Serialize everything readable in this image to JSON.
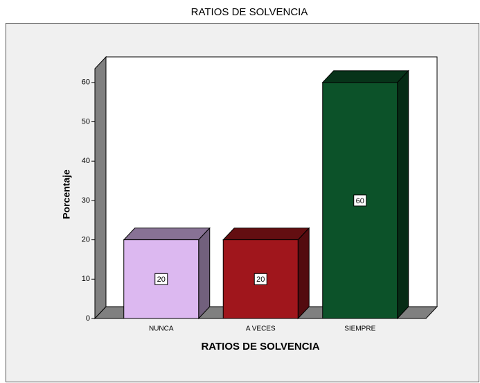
{
  "chart_data": {
    "type": "bar3d",
    "title": "RATIOS DE SOLVENCIA",
    "x_label": "RATIOS DE SOLVENCIA",
    "y_label": "Porcentaje",
    "categories": [
      "NUNCA",
      "A VECES",
      "SIEMPRE"
    ],
    "values": [
      20,
      20,
      60
    ],
    "colors": [
      "#dcb8f0",
      "#a0161c",
      "#0c5229"
    ],
    "ylim": [
      0,
      63.5
    ],
    "yticks": [
      0,
      10,
      20,
      30,
      40,
      50,
      60
    ]
  }
}
